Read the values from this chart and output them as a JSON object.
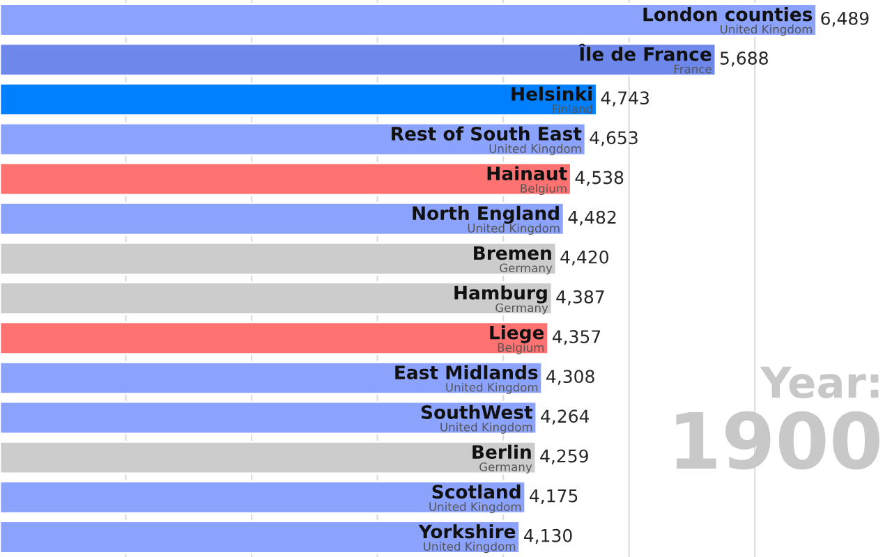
{
  "chart_data": {
    "type": "bar",
    "orientation": "horizontal",
    "categories": [
      "London counties",
      "Île de France",
      "Helsinki",
      "Rest of South East",
      "Hainaut",
      "North England",
      "Bremen",
      "Hamburg",
      "Liege",
      "East Midlands",
      "SouthWest",
      "Berlin",
      "Scotland",
      "Yorkshire"
    ],
    "values": [
      6489,
      5688,
      4743,
      4653,
      4538,
      4482,
      4420,
      4387,
      4357,
      4308,
      4264,
      4259,
      4175,
      4130
    ],
    "value_labels": [
      "6,489",
      "5,688",
      "4,743",
      "4,653",
      "4,538",
      "4,482",
      "4,420",
      "4,387",
      "4,357",
      "4,308",
      "4,264",
      "4,259",
      "4,175",
      "4,130"
    ],
    "colors": [
      "#8ca3fe",
      "#6d88ea",
      "#0080fe",
      "#8ca3fe",
      "#ff7272",
      "#8ca3fe",
      "#cccccc",
      "#cccccc",
      "#ff7272",
      "#8ca3fe",
      "#8ca3fe",
      "#cccccc",
      "#8ca3fe",
      "#8ca3fe"
    ],
    "annotations": [
      {
        "text": "United Kingdom",
        "x": 6489,
        "y": "London counties"
      },
      {
        "text": "France",
        "x": 5688,
        "y": "Île de France"
      },
      {
        "text": "Finland",
        "x": 4743,
        "y": "Helsinki"
      },
      {
        "text": "United Kingdom",
        "x": 4653,
        "y": "Rest of South East"
      },
      {
        "text": "Belgium",
        "x": 4538,
        "y": "Hainaut"
      },
      {
        "text": "United Kingdom",
        "x": 4482,
        "y": "North England"
      },
      {
        "text": "Germany",
        "x": 4420,
        "y": "Bremen"
      },
      {
        "text": "Germany",
        "x": 4387,
        "y": "Hamburg"
      },
      {
        "text": "Belgium",
        "x": 4357,
        "y": "Liege"
      },
      {
        "text": "United Kingdom",
        "x": 4308,
        "y": "East Midlands"
      },
      {
        "text": "United Kingdom",
        "x": 4264,
        "y": "SouthWest"
      },
      {
        "text": "Germany",
        "x": 4259,
        "y": "Berlin"
      },
      {
        "text": "United Kingdom",
        "x": 4175,
        "y": "Scotland"
      },
      {
        "text": "United Kingdom",
        "x": 4130,
        "y": "Yorkshire"
      },
      "Year:",
      "1900"
    ],
    "xlim": [
      0,
      7090
    ],
    "xticks": [
      {
        "value": 1000,
        "label": null
      },
      {
        "value": 2000,
        "label": null
      },
      {
        "value": 3000,
        "label": null
      },
      {
        "value": 4000,
        "label": null
      },
      {
        "value": 5000,
        "label": null
      },
      {
        "value": 6000,
        "label": null
      }
    ],
    "grid": "x",
    "legend": false
  }
}
